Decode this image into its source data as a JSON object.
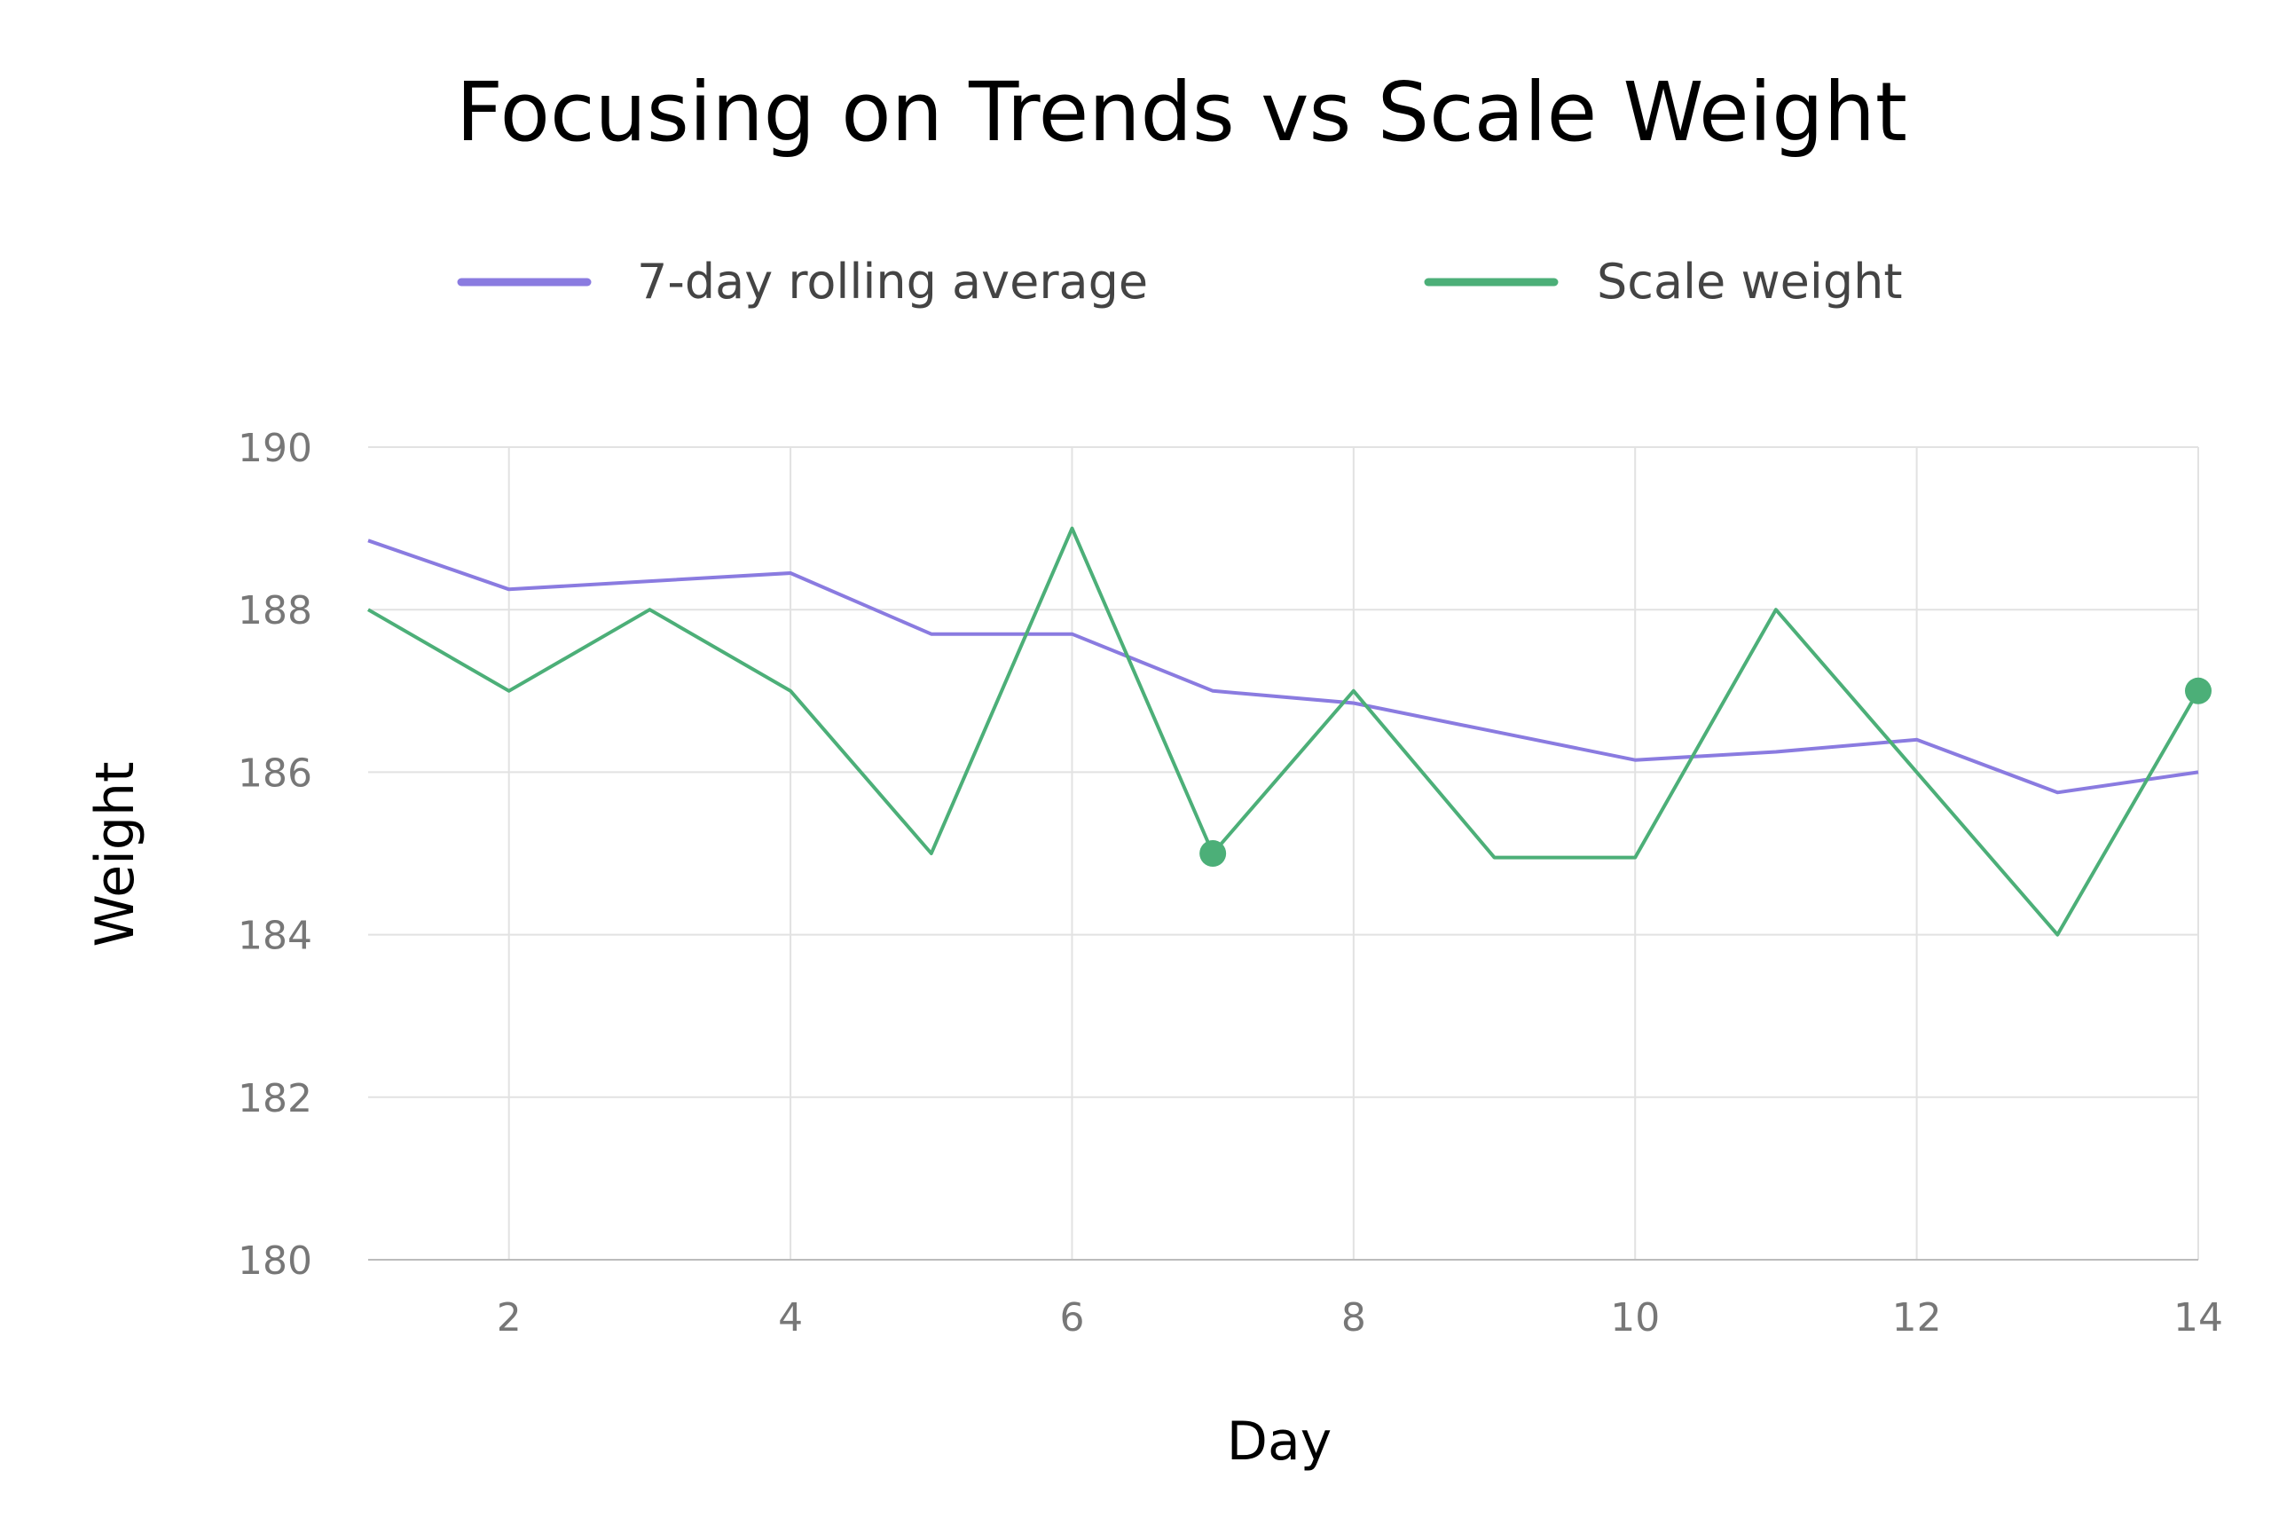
{
  "chart_data": {
    "type": "line",
    "title": "Focusing on Trends vs Scale Weight",
    "xlabel": "Day",
    "ylabel": "Weight",
    "xlim": [
      1,
      14
    ],
    "ylim": [
      180,
      190
    ],
    "x_ticks": [
      "2",
      "4",
      "6",
      "8",
      "10",
      "12",
      "14"
    ],
    "y_ticks": [
      "190",
      "188",
      "186",
      "184",
      "182",
      "180"
    ],
    "grid": true,
    "legend_position": "top",
    "series": [
      {
        "name": "7-day rolling average",
        "color": "#8a7be0",
        "x": [
          1,
          2,
          3,
          4,
          5,
          6,
          7,
          8,
          9,
          10,
          11,
          12,
          13,
          14
        ],
        "values": [
          188.85,
          188.25,
          188.35,
          188.45,
          187.7,
          187.7,
          187.0,
          186.85,
          186.5,
          186.15,
          186.25,
          186.4,
          185.75,
          186.0
        ],
        "highlight": []
      },
      {
        "name": "Scale weight",
        "color": "#4caf78",
        "x": [
          1,
          2,
          3,
          4,
          5,
          6,
          7,
          8,
          9,
          10,
          11,
          12,
          13,
          14
        ],
        "values": [
          188.0,
          187.0,
          188.0,
          187.0,
          185.0,
          189.0,
          185.0,
          187.0,
          184.95,
          184.95,
          188.0,
          186.0,
          184.0,
          187.0
        ],
        "highlight": [
          7,
          14
        ]
      }
    ]
  }
}
